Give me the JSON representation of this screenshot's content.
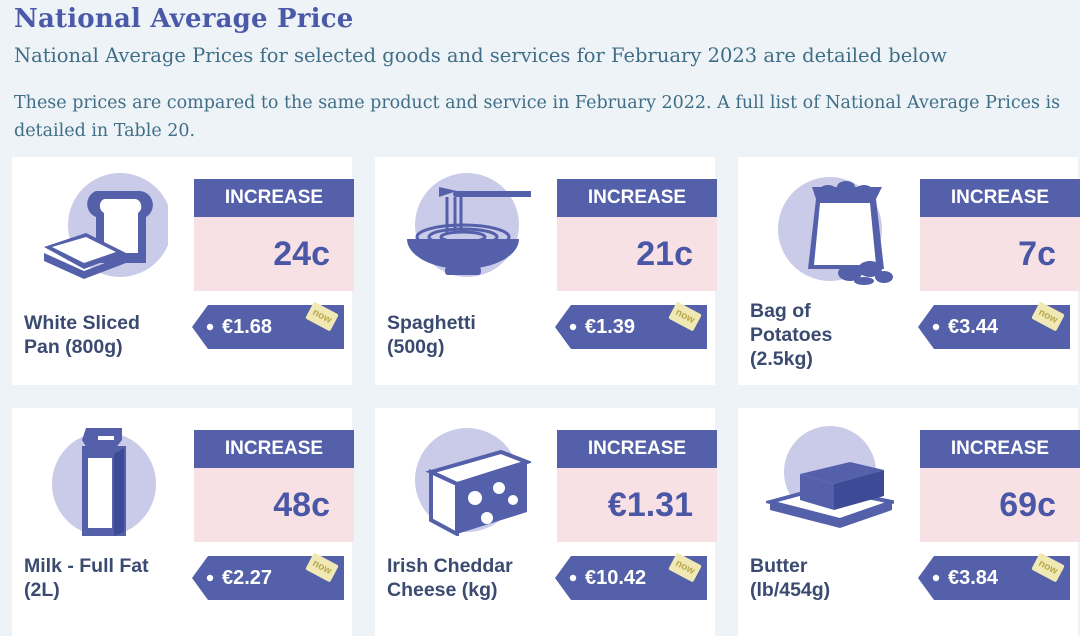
{
  "header": {
    "title": "National Average Price",
    "subtitle": "National Average Prices for selected goods and services for February 2023 are detailed below",
    "intro": "These prices are compared to the same product and service in February 2022. A full list of National Average Prices is detailed in Table 20."
  },
  "colors": {
    "primary": "#5461aa",
    "increase_bg": "#f8e1e4",
    "accent_text": "#3f6e86",
    "icon_circle": "#c9cbe8"
  },
  "items": [
    {
      "icon": "bread-icon",
      "name_line1": "White Sliced",
      "name_line2": "Pan (800g)",
      "name_line3": "",
      "increase_label": "INCREASE",
      "increase": "24c",
      "price": "€1.68",
      "now": "now"
    },
    {
      "icon": "spaghetti-icon",
      "name_line1": "Spaghetti",
      "name_line2": "(500g)",
      "name_line3": "",
      "increase_label": "INCREASE",
      "increase": "21c",
      "price": "€1.39",
      "now": "now"
    },
    {
      "icon": "potatoes-icon",
      "name_line1": "Bag of",
      "name_line2": "Potatoes",
      "name_line3": "(2.5kg)",
      "increase_label": "INCREASE",
      "increase": "7c",
      "price": "€3.44",
      "now": "now"
    },
    {
      "icon": "milk-carton-icon",
      "name_line1": "Milk - Full Fat",
      "name_line2": "(2L)",
      "name_line3": "",
      "increase_label": "INCREASE",
      "increase": "48c",
      "price": "€2.27",
      "now": "now"
    },
    {
      "icon": "cheese-icon",
      "name_line1": "Irish Cheddar",
      "name_line2": "Cheese (kg)",
      "name_line3": "",
      "increase_label": "INCREASE",
      "increase": "€1.31",
      "price": "€10.42",
      "now": "now"
    },
    {
      "icon": "butter-icon",
      "name_line1": "Butter",
      "name_line2": "(lb/454g)",
      "name_line3": "",
      "increase_label": "INCREASE",
      "increase": "69c",
      "price": "€3.84",
      "now": "now"
    }
  ]
}
